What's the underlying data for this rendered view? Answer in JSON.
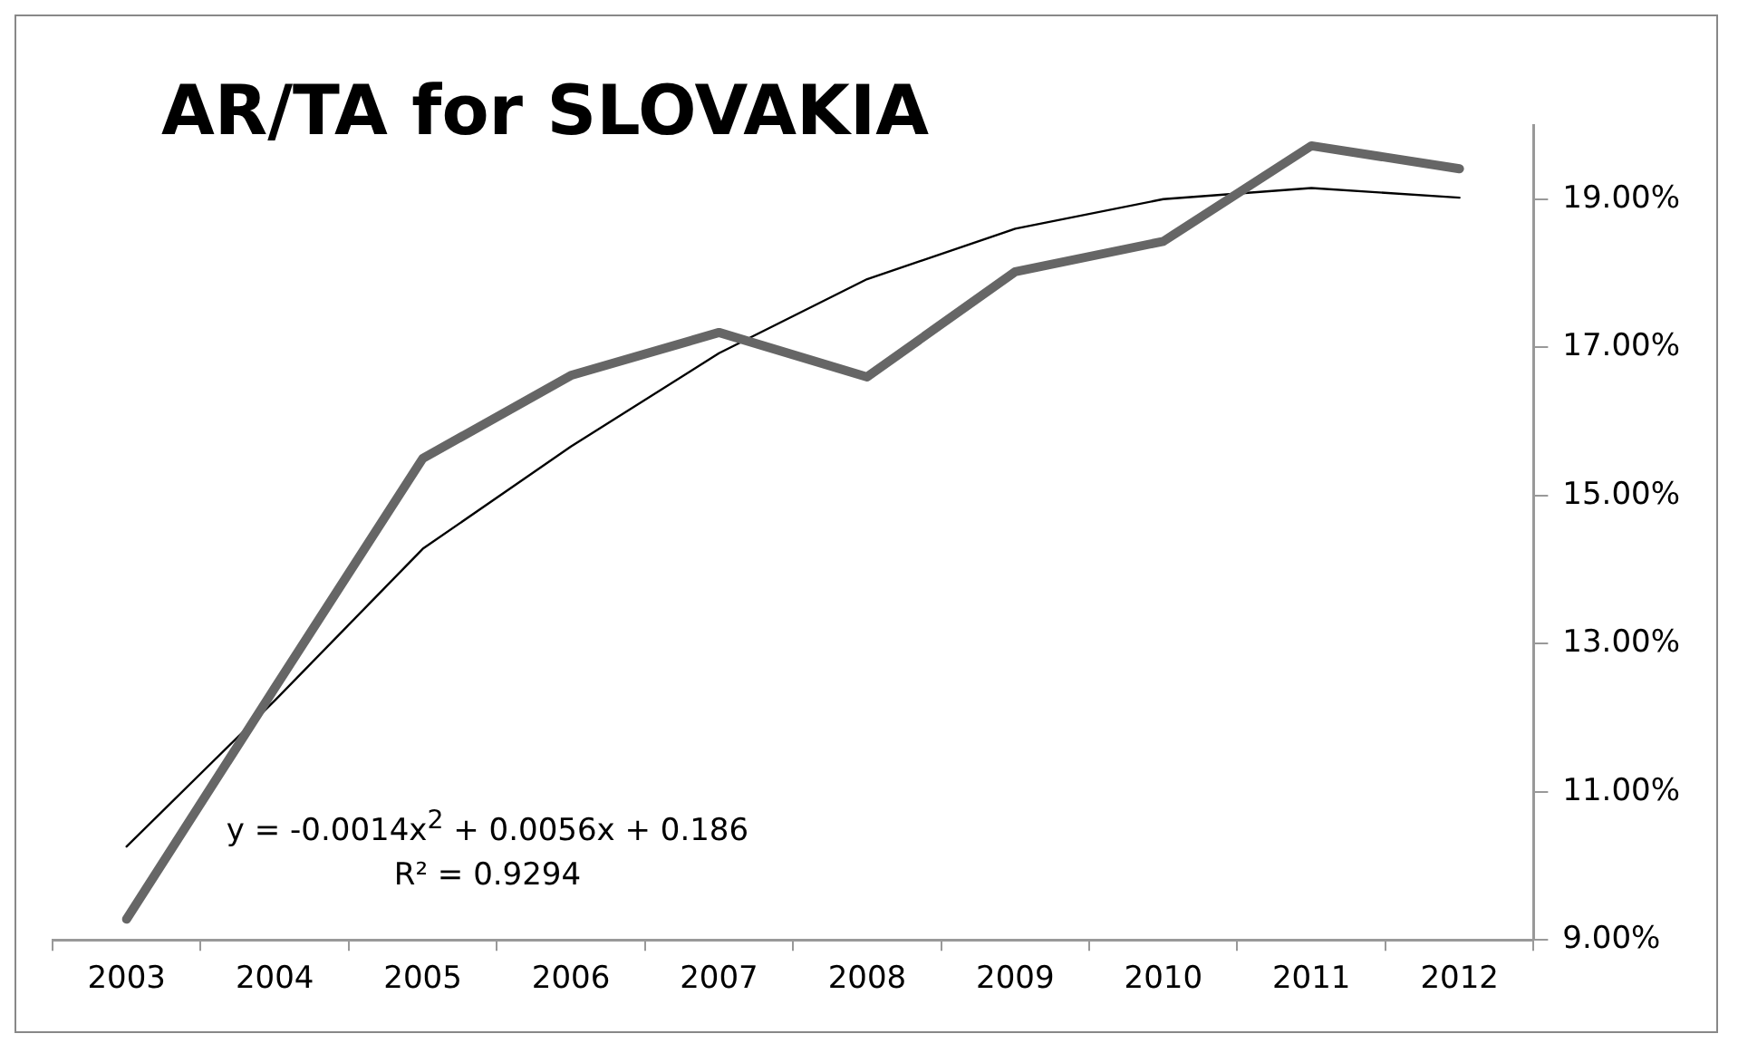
{
  "chart_data": {
    "type": "line",
    "title": "AR/TA for SLOVAKIA",
    "categories": [
      "2003",
      "2004",
      "2005",
      "2006",
      "2007",
      "2008",
      "2009",
      "2010",
      "2011",
      "2012"
    ],
    "series": [
      {
        "color": "#666666",
        "values": [
          9.28,
          12.4,
          15.5,
          16.62,
          17.2,
          16.6,
          18.02,
          18.43,
          19.72,
          19.41
        ]
      },
      {
        "color": "#000000",
        "values": [
          10.26,
          12.23,
          14.28,
          15.66,
          16.92,
          17.92,
          18.6,
          19.0,
          19.15,
          19.02
        ]
      }
    ],
    "ylim": [
      9,
      20
    ],
    "yticks": [
      {
        "value": 9,
        "label": "9.00%"
      },
      {
        "value": 11,
        "label": "11.00%"
      },
      {
        "value": 13,
        "label": "13.00%"
      },
      {
        "value": 15,
        "label": "15.00%"
      },
      {
        "value": 17,
        "label": "17.00%"
      },
      {
        "value": 19,
        "label": "19.00%"
      }
    ],
    "annotations": [
      "y = -0.0014x$^{2}$ + 0.0056x + 0.186",
      "R² = 0.9294"
    ],
    "grid": false,
    "legend": false,
    "marker": "none"
  }
}
